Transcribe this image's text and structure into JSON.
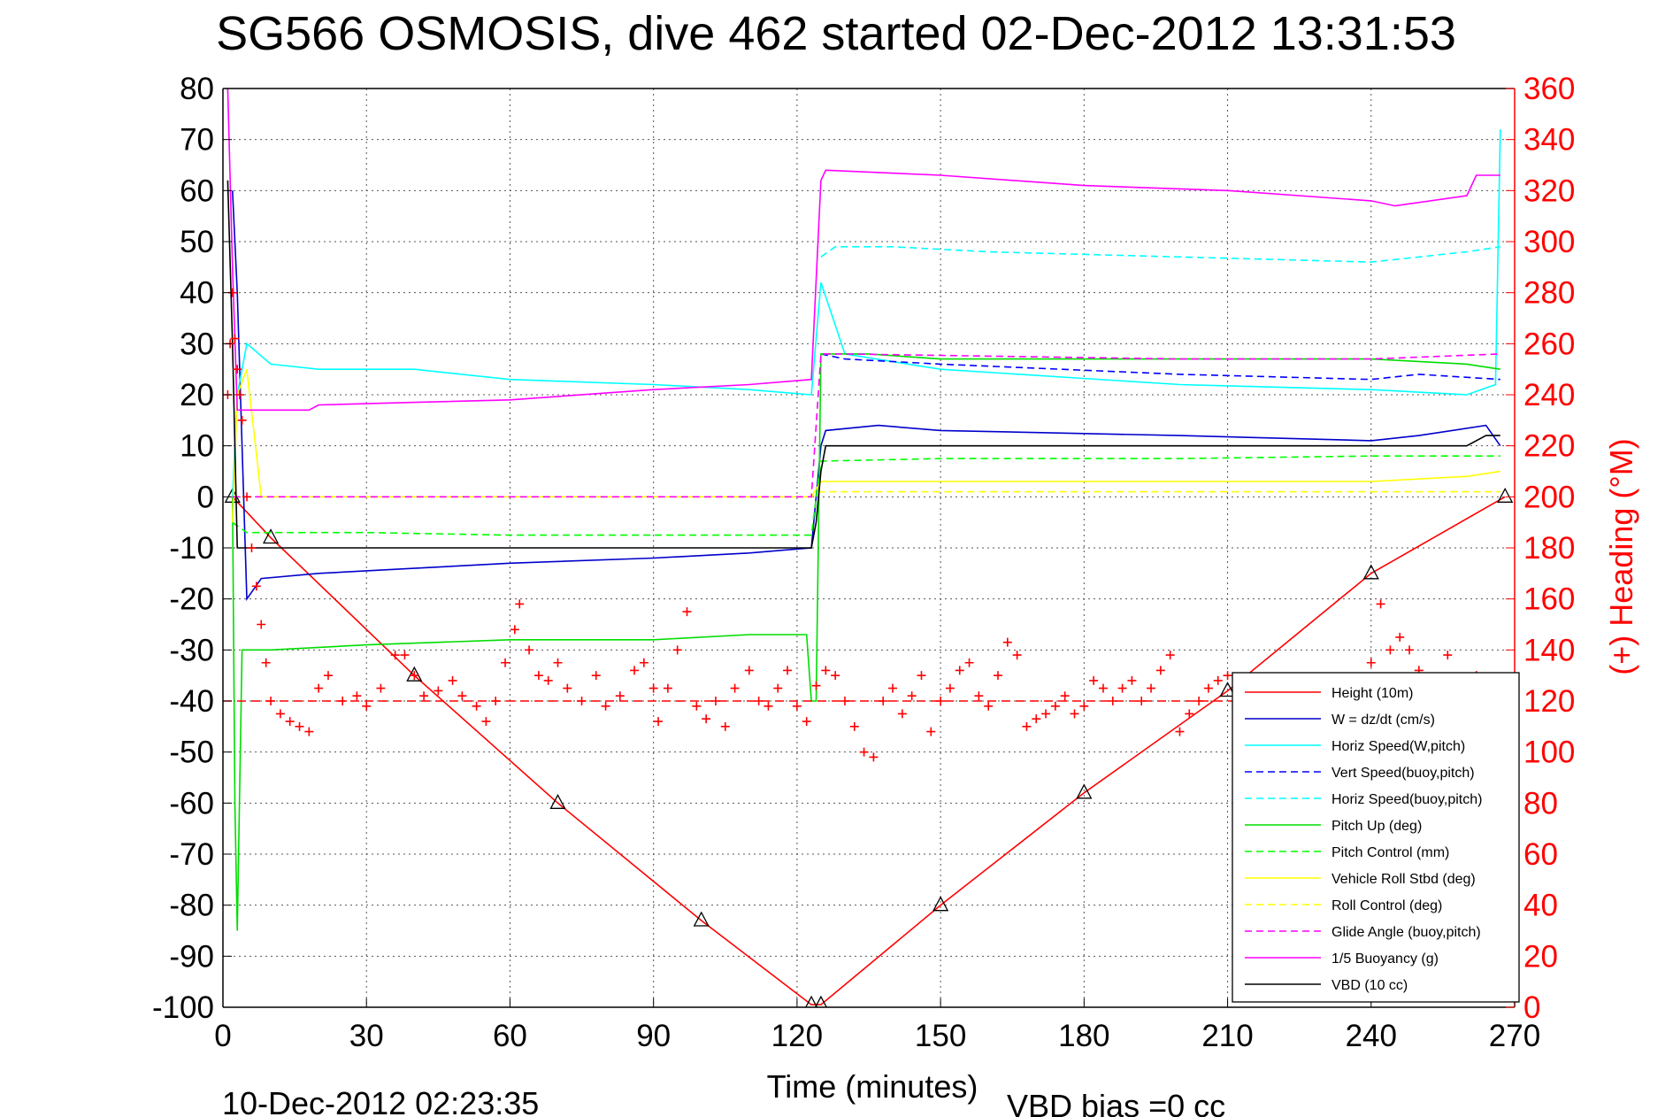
{
  "chart_data": {
    "type": "line",
    "title": "SG566 OSMOSIS, dive 462 started 02-Dec-2012 13:31:53",
    "xlabel": "Time (minutes)",
    "ylabel_right": "(+) Heading (°M)",
    "footer_left": "10-Dec-2012 02:23:35",
    "footer_right": "VBD bias =0 cc",
    "xlim": [
      0,
      270
    ],
    "ylim_left": [
      -100,
      80
    ],
    "ylim_right": [
      0,
      360
    ],
    "xticks": [
      0,
      30,
      60,
      90,
      120,
      150,
      180,
      210,
      240,
      270
    ],
    "yticks_left": [
      -100,
      -90,
      -80,
      -70,
      -60,
      -50,
      -40,
      -30,
      -20,
      -10,
      0,
      10,
      20,
      30,
      40,
      50,
      60,
      70,
      80
    ],
    "yticks_right": [
      0,
      20,
      40,
      60,
      80,
      100,
      120,
      140,
      160,
      180,
      200,
      220,
      240,
      260,
      280,
      300,
      320,
      340,
      360
    ],
    "grid": true,
    "legend_position": "bottom-right",
    "colors": {
      "red": "#ff0000",
      "blue": "#0000cc",
      "cyan": "#00ffff",
      "green": "#00dd00",
      "yellow": "#ffff00",
      "magenta": "#ff00ff",
      "black": "#000000"
    },
    "series": [
      {
        "name": "Height (10m)",
        "color": "#ff0000",
        "style": "solid",
        "marker": "triangle",
        "x": [
          2,
          10,
          40,
          70,
          100,
          123,
          125,
          150,
          180,
          210,
          240,
          268
        ],
        "y": [
          0,
          -8,
          -35,
          -60,
          -83,
          -99.5,
          -99.5,
          -80,
          -58,
          -38,
          -15,
          0
        ]
      },
      {
        "name": "W = dz/dt (cm/s)",
        "color": "#0000cc",
        "style": "solid",
        "x": [
          2,
          3,
          5,
          8,
          20,
          40,
          60,
          90,
          110,
          123,
          125,
          126,
          137,
          150,
          200,
          240,
          250,
          264,
          267
        ],
        "y": [
          60,
          40,
          -20,
          -16,
          -15,
          -14,
          -13,
          -12,
          -11,
          -10,
          10,
          13,
          14,
          13,
          12,
          11,
          12,
          14,
          10
        ]
      },
      {
        "name": "Horiz Speed(W,pitch)",
        "color": "#00ffff",
        "style": "solid",
        "x": [
          2,
          3,
          5,
          10,
          20,
          40,
          60,
          90,
          110,
          123,
          125,
          130,
          150,
          200,
          240,
          260,
          266,
          267
        ],
        "y": [
          0,
          20,
          30,
          26,
          25,
          25,
          23,
          22,
          21,
          20,
          42,
          28,
          25,
          22,
          21,
          20,
          22,
          72
        ]
      },
      {
        "name": "Vert Speed(buoy,pitch)",
        "color": "#0000ff",
        "style": "dashed",
        "x": [
          125,
          130,
          150,
          200,
          240,
          250,
          267
        ],
        "y": [
          28,
          27,
          26,
          24,
          23,
          24,
          23
        ]
      },
      {
        "name": "Horiz Speed(buoy,pitch)",
        "color": "#00ffff",
        "style": "dashed",
        "x": [
          125,
          128,
          140,
          160,
          200,
          240,
          260,
          267
        ],
        "y": [
          47,
          49,
          49,
          48,
          47,
          46,
          48,
          49
        ]
      },
      {
        "name": "Pitch Up (deg)",
        "color": "#00dd00",
        "style": "solid",
        "x": [
          2,
          2.5,
          3,
          4,
          10,
          30,
          60,
          90,
          110,
          122,
          123,
          124,
          125,
          135,
          150,
          200,
          240,
          260,
          267
        ],
        "y": [
          0,
          -60,
          -85,
          -30,
          -30,
          -29,
          -28,
          -28,
          -27,
          -27,
          -40,
          -40,
          28,
          28,
          27,
          27,
          27,
          26,
          25
        ]
      },
      {
        "name": "Pitch Control (mm)",
        "color": "#00ff00",
        "style": "dashed",
        "x": [
          2,
          5,
          30,
          60,
          90,
          123,
          125,
          150,
          200,
          240,
          267
        ],
        "y": [
          -5,
          -7,
          -7,
          -7.5,
          -7.5,
          -7.5,
          7,
          7.5,
          7.5,
          8,
          8
        ]
      },
      {
        "name": "Vehicle Roll Stbd (deg)",
        "color": "#ffff00",
        "style": "solid",
        "x": [
          2,
          3,
          5,
          8,
          20,
          40,
          60,
          90,
          110,
          123,
          125,
          150,
          200,
          240,
          260,
          267
        ],
        "y": [
          -5,
          20,
          25,
          0,
          0,
          0,
          0,
          0,
          0,
          0,
          3,
          3,
          3,
          3,
          4,
          5
        ]
      },
      {
        "name": "Roll Control (deg)",
        "color": "#ffff00",
        "style": "dashed",
        "x": [
          2,
          10,
          123,
          125,
          267
        ],
        "y": [
          0,
          0,
          0,
          1,
          1
        ]
      },
      {
        "name": "Glide Angle (buoy,pitch)",
        "color": "#ff00ff",
        "style": "dashed",
        "x": [
          2,
          10,
          123,
          125,
          130,
          200,
          240,
          267
        ],
        "y": [
          0,
          0,
          0,
          28,
          28,
          27,
          27,
          28
        ]
      },
      {
        "name": "1/5 Buoyancy (g)",
        "color": "#ff00ff",
        "style": "solid",
        "x": [
          1,
          2,
          3,
          18,
          20,
          40,
          60,
          90,
          110,
          123,
          125,
          126,
          150,
          180,
          210,
          240,
          245,
          260,
          262,
          267
        ],
        "y": [
          80,
          45,
          17,
          17,
          18,
          18.5,
          19,
          21,
          22,
          23,
          62,
          64,
          63,
          61,
          60,
          58,
          57,
          59,
          63,
          63
        ]
      },
      {
        "name": "VBD (10 cc)",
        "color": "#000000",
        "style": "solid",
        "x": [
          1,
          2,
          3,
          10,
          60,
          123,
          124,
          125,
          126,
          200,
          260,
          264,
          267
        ],
        "y": [
          62,
          30,
          -10,
          -10,
          -10,
          -10,
          -5,
          5,
          10,
          10,
          10,
          12,
          12
        ]
      }
    ],
    "heading_points": [
      [
        1,
        240
      ],
      [
        1.5,
        260
      ],
      [
        2,
        280
      ],
      [
        2.5,
        262
      ],
      [
        3,
        250
      ],
      [
        3.5,
        240
      ],
      [
        4,
        230
      ],
      [
        5,
        200
      ],
      [
        6,
        180
      ],
      [
        7,
        165
      ],
      [
        8,
        150
      ],
      [
        9,
        135
      ],
      [
        10,
        120
      ],
      [
        12,
        115
      ],
      [
        14,
        112
      ],
      [
        16,
        110
      ],
      [
        18,
        108
      ],
      [
        20,
        125
      ],
      [
        22,
        130
      ],
      [
        25,
        120
      ],
      [
        28,
        122
      ],
      [
        30,
        118
      ],
      [
        33,
        125
      ],
      [
        36,
        138
      ],
      [
        38,
        138
      ],
      [
        40,
        130
      ],
      [
        42,
        122
      ],
      [
        45,
        124
      ],
      [
        48,
        128
      ],
      [
        50,
        122
      ],
      [
        53,
        118
      ],
      [
        55,
        112
      ],
      [
        57,
        120
      ],
      [
        59,
        135
      ],
      [
        61,
        148
      ],
      [
        62,
        158
      ],
      [
        64,
        140
      ],
      [
        66,
        130
      ],
      [
        68,
        128
      ],
      [
        70,
        135
      ],
      [
        72,
        125
      ],
      [
        75,
        120
      ],
      [
        78,
        130
      ],
      [
        80,
        118
      ],
      [
        83,
        122
      ],
      [
        86,
        132
      ],
      [
        88,
        135
      ],
      [
        90,
        125
      ],
      [
        91,
        112
      ],
      [
        93,
        125
      ],
      [
        95,
        140
      ],
      [
        97,
        155
      ],
      [
        99,
        118
      ],
      [
        101,
        113
      ],
      [
        103,
        120
      ],
      [
        105,
        110
      ],
      [
        107,
        125
      ],
      [
        110,
        132
      ],
      [
        112,
        120
      ],
      [
        114,
        118
      ],
      [
        116,
        125
      ],
      [
        118,
        132
      ],
      [
        120,
        118
      ],
      [
        122,
        112
      ],
      [
        124,
        126
      ],
      [
        126,
        132
      ],
      [
        128,
        130
      ],
      [
        130,
        120
      ],
      [
        132,
        110
      ],
      [
        134,
        100
      ],
      [
        136,
        98
      ],
      [
        138,
        120
      ],
      [
        140,
        125
      ],
      [
        142,
        115
      ],
      [
        144,
        122
      ],
      [
        146,
        130
      ],
      [
        148,
        108
      ],
      [
        150,
        120
      ],
      [
        152,
        125
      ],
      [
        154,
        132
      ],
      [
        156,
        135
      ],
      [
        158,
        122
      ],
      [
        160,
        118
      ],
      [
        162,
        130
      ],
      [
        164,
        143
      ],
      [
        166,
        138
      ],
      [
        168,
        110
      ],
      [
        170,
        113
      ],
      [
        172,
        115
      ],
      [
        174,
        118
      ],
      [
        176,
        122
      ],
      [
        178,
        115
      ],
      [
        180,
        118
      ],
      [
        182,
        128
      ],
      [
        184,
        125
      ],
      [
        186,
        120
      ],
      [
        188,
        125
      ],
      [
        190,
        128
      ],
      [
        192,
        120
      ],
      [
        194,
        125
      ],
      [
        196,
        132
      ],
      [
        198,
        138
      ],
      [
        200,
        108
      ],
      [
        202,
        115
      ],
      [
        204,
        120
      ],
      [
        206,
        125
      ],
      [
        208,
        128
      ],
      [
        210,
        130
      ],
      [
        212,
        125
      ],
      [
        214,
        118
      ],
      [
        220,
        122
      ],
      [
        230,
        128
      ],
      [
        240,
        135
      ],
      [
        242,
        158
      ],
      [
        244,
        140
      ],
      [
        246,
        145
      ],
      [
        248,
        140
      ],
      [
        250,
        132
      ],
      [
        256,
        138
      ],
      [
        262,
        130
      ],
      [
        266,
        120
      ],
      [
        268,
        108
      ]
    ],
    "heading_mean_right": 120
  }
}
